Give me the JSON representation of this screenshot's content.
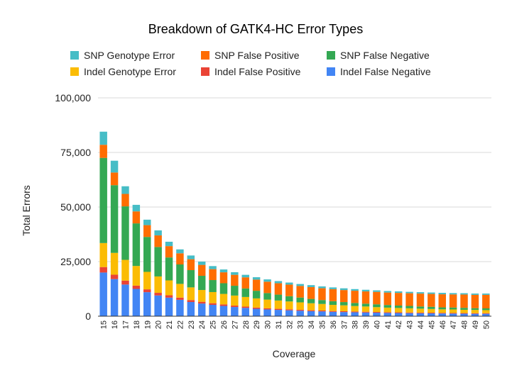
{
  "chart_data": {
    "type": "bar",
    "stacked": true,
    "title": "Breakdown of GATK4-HC Error Types",
    "xlabel": "Coverage",
    "ylabel": "Total Errors",
    "ylim": [
      0,
      100000
    ],
    "yticks": [
      "0",
      "25,000",
      "50,000",
      "75,000",
      "100,000"
    ],
    "ytick_values": [
      0,
      25000,
      50000,
      75000,
      100000
    ],
    "grid": true,
    "legend_position": "top",
    "categories": [
      "15",
      "16",
      "17",
      "18",
      "19",
      "20",
      "21",
      "22",
      "23",
      "24",
      "25",
      "26",
      "27",
      "28",
      "29",
      "30",
      "31",
      "32",
      "33",
      "34",
      "35",
      "36",
      "37",
      "38",
      "39",
      "40",
      "41",
      "42",
      "43",
      "44",
      "45",
      "46",
      "47",
      "48",
      "49",
      "50"
    ],
    "series": [
      {
        "name": "Indel False Negative",
        "color": "#4285f4",
        "values": [
          20000,
          17000,
          14500,
          12500,
          11000,
          9500,
          8500,
          7500,
          6500,
          5800,
          5200,
          4700,
          4200,
          3800,
          3400,
          3100,
          2900,
          2700,
          2500,
          2300,
          2200,
          2000,
          1900,
          1800,
          1700,
          1600,
          1500,
          1450,
          1400,
          1350,
          1300,
          1250,
          1200,
          1150,
          1100,
          1100
        ]
      },
      {
        "name": "Indel False Positive",
        "color": "#ea4335",
        "values": [
          2500,
          2000,
          1800,
          1500,
          1300,
          1200,
          1100,
          1000,
          900,
          800,
          750,
          700,
          650,
          600,
          550,
          500,
          480,
          460,
          440,
          420,
          400,
          380,
          370,
          360,
          350,
          340,
          330,
          320,
          310,
          300,
          300,
          290,
          280,
          280,
          270,
          270
        ]
      },
      {
        "name": "Indel Genotype Error",
        "color": "#fbbc04",
        "values": [
          11000,
          10000,
          9500,
          9000,
          8000,
          7500,
          6800,
          6300,
          5800,
          5400,
          5100,
          4800,
          4600,
          4400,
          4200,
          4000,
          3800,
          3600,
          3400,
          3200,
          3000,
          2800,
          2700,
          2500,
          2400,
          2200,
          2100,
          2000,
          1900,
          1800,
          1700,
          1600,
          1600,
          1500,
          1500,
          1400
        ]
      },
      {
        "name": "SNP False Negative",
        "color": "#34a853",
        "values": [
          39000,
          31000,
          24500,
          19500,
          16000,
          13500,
          10500,
          8900,
          7900,
          6500,
          5500,
          4900,
          4500,
          3900,
          3500,
          3000,
          2700,
          2400,
          2200,
          2000,
          1800,
          1700,
          1500,
          1400,
          1300,
          1300,
          1200,
          1100,
          1100,
          1000,
          1000,
          900,
          900,
          900,
          800,
          800
        ]
      },
      {
        "name": "SNP False Positive",
        "color": "#ff6d01",
        "values": [
          6000,
          5800,
          5700,
          5500,
          5400,
          5300,
          5200,
          5100,
          5000,
          5000,
          5000,
          5000,
          5000,
          5100,
          5100,
          5200,
          5200,
          5300,
          5300,
          5400,
          5400,
          5500,
          5500,
          5600,
          5600,
          5700,
          5700,
          5800,
          5800,
          5900,
          5900,
          6000,
          6000,
          6100,
          6100,
          6200
        ]
      },
      {
        "name": "SNP Genotype Error",
        "color": "#46bdc6",
        "values": [
          6000,
          5400,
          3500,
          3000,
          2500,
          2300,
          2000,
          1800,
          1700,
          1500,
          1400,
          1300,
          1200,
          1150,
          1100,
          1050,
          1000,
          950,
          900,
          900,
          850,
          800,
          800,
          750,
          750,
          700,
          700,
          700,
          650,
          650,
          650,
          650,
          600,
          600,
          600,
          600
        ]
      }
    ]
  }
}
